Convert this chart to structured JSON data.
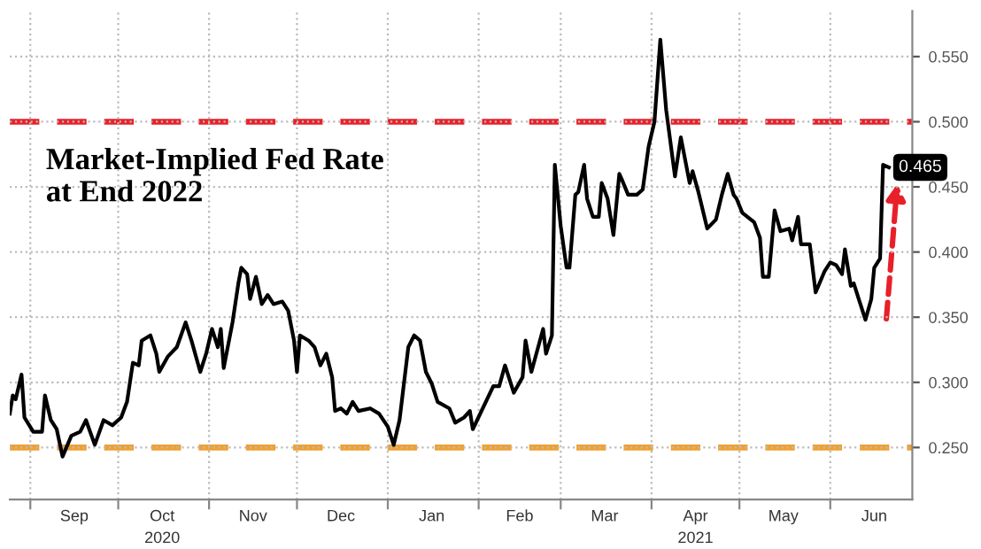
{
  "chart_data": {
    "type": "line",
    "title": "Market-Implied Fed Rate\nat End 2022",
    "x": [
      "2020-08-25",
      "2020-08-26",
      "2020-08-27",
      "2020-08-29",
      "2020-08-30",
      "2020-09-02",
      "2020-09-05",
      "2020-09-06",
      "2020-09-08",
      "2020-09-10",
      "2020-09-12",
      "2020-09-15",
      "2020-09-18",
      "2020-09-20",
      "2020-09-23",
      "2020-09-26",
      "2020-09-29",
      "2020-10-02",
      "2020-10-04",
      "2020-10-06",
      "2020-10-08",
      "2020-10-09",
      "2020-10-12",
      "2020-10-14",
      "2020-10-15",
      "2020-10-18",
      "2020-10-21",
      "2020-10-24",
      "2020-10-26",
      "2020-10-29",
      "2020-10-31",
      "2020-11-02",
      "2020-11-04",
      "2020-11-05",
      "2020-11-06",
      "2020-11-09",
      "2020-11-11",
      "2020-11-12",
      "2020-11-14",
      "2020-11-15",
      "2020-11-17",
      "2020-11-19",
      "2020-11-21",
      "2020-11-23",
      "2020-11-26",
      "2020-11-28",
      "2020-11-30",
      "2020-12-01",
      "2020-12-02",
      "2020-12-05",
      "2020-12-07",
      "2020-12-09",
      "2020-12-11",
      "2020-12-13",
      "2020-12-14",
      "2020-12-16",
      "2020-12-18",
      "2020-12-20",
      "2020-12-22",
      "2020-12-26",
      "2020-12-29",
      "2021-01-01",
      "2021-01-03",
      "2021-01-05",
      "2021-01-08",
      "2021-01-10",
      "2021-01-12",
      "2021-01-14",
      "2021-01-16",
      "2021-01-18",
      "2021-01-22",
      "2021-01-24",
      "2021-01-27",
      "2021-01-29",
      "2021-01-30",
      "2021-02-06",
      "2021-02-08",
      "2021-02-10",
      "2021-02-13",
      "2021-02-16",
      "2021-02-17",
      "2021-02-19",
      "2021-02-23",
      "2021-02-24",
      "2021-02-26",
      "2021-02-27",
      "2021-03-01",
      "2021-03-03",
      "2021-03-04",
      "2021-03-06",
      "2021-03-07",
      "2021-03-09",
      "2021-03-10",
      "2021-03-12",
      "2021-03-14",
      "2021-03-15",
      "2021-03-17",
      "2021-03-19",
      "2021-03-21",
      "2021-03-22",
      "2021-03-24",
      "2021-03-27",
      "2021-03-29",
      "2021-03-31",
      "2021-04-02",
      "2021-04-04",
      "2021-04-06",
      "2021-04-09",
      "2021-04-11",
      "2021-04-14",
      "2021-04-15",
      "2021-04-17",
      "2021-04-20",
      "2021-04-23",
      "2021-04-25",
      "2021-04-27",
      "2021-04-29",
      "2021-04-30",
      "2021-05-02",
      "2021-05-06",
      "2021-05-08",
      "2021-05-09",
      "2021-05-11",
      "2021-05-13",
      "2021-05-15",
      "2021-05-18",
      "2021-05-19",
      "2021-05-21",
      "2021-05-22",
      "2021-05-25",
      "2021-05-27",
      "2021-05-30",
      "2021-06-01",
      "2021-06-03",
      "2021-06-05",
      "2021-06-06",
      "2021-06-08",
      "2021-06-09",
      "2021-06-11",
      "2021-06-13",
      "2021-06-15",
      "2021-06-16",
      "2021-06-18",
      "2021-06-19",
      "2021-06-21"
    ],
    "series": [
      {
        "color": "#000000",
        "values": [
          0.276,
          0.29,
          0.287,
          0.306,
          0.273,
          0.262,
          0.262,
          0.29,
          0.271,
          0.264,
          0.243,
          0.259,
          0.262,
          0.271,
          0.252,
          0.271,
          0.267,
          0.273,
          0.285,
          0.315,
          0.313,
          0.332,
          0.336,
          0.322,
          0.308,
          0.32,
          0.327,
          0.346,
          0.332,
          0.308,
          0.322,
          0.341,
          0.327,
          0.341,
          0.311,
          0.346,
          0.376,
          0.388,
          0.383,
          0.364,
          0.381,
          0.36,
          0.367,
          0.36,
          0.362,
          0.355,
          0.332,
          0.308,
          0.336,
          0.332,
          0.327,
          0.313,
          0.322,
          0.304,
          0.278,
          0.28,
          0.276,
          0.285,
          0.278,
          0.28,
          0.276,
          0.266,
          0.252,
          0.271,
          0.327,
          0.336,
          0.332,
          0.308,
          0.299,
          0.285,
          0.28,
          0.269,
          0.273,
          0.278,
          0.264,
          0.297,
          0.297,
          0.313,
          0.292,
          0.304,
          0.332,
          0.308,
          0.341,
          0.322,
          0.336,
          0.467,
          0.42,
          0.388,
          0.388,
          0.444,
          0.446,
          0.467,
          0.441,
          0.427,
          0.427,
          0.453,
          0.441,
          0.413,
          0.46,
          0.455,
          0.444,
          0.444,
          0.448,
          0.481,
          0.5,
          0.563,
          0.509,
          0.458,
          0.488,
          0.453,
          0.462,
          0.446,
          0.418,
          0.425,
          0.444,
          0.46,
          0.444,
          0.441,
          0.43,
          0.423,
          0.411,
          0.381,
          0.381,
          0.432,
          0.416,
          0.418,
          0.409,
          0.427,
          0.406,
          0.406,
          0.369,
          0.385,
          0.392,
          0.39,
          0.383,
          0.402,
          0.374,
          0.376,
          0.362,
          0.348,
          0.364,
          0.388,
          0.395,
          0.467,
          0.465
        ],
        "value_labels": [
          null,
          null,
          null,
          null,
          null,
          null,
          null,
          null,
          null,
          null,
          null,
          null,
          null,
          null,
          null,
          null,
          null,
          null,
          null,
          null,
          null,
          null,
          null,
          null,
          null,
          null,
          null,
          null,
          null,
          null,
          null,
          null,
          null,
          null,
          null,
          null,
          null,
          null,
          null,
          null,
          null,
          null,
          null,
          null,
          null,
          null,
          null,
          null,
          null,
          null,
          null,
          null,
          null,
          null,
          null,
          null,
          null,
          null,
          null,
          null,
          null,
          null,
          null,
          null,
          null,
          null,
          null,
          null,
          null,
          null,
          null,
          null,
          null,
          null,
          null,
          null,
          null,
          null,
          null,
          null,
          null,
          null,
          null,
          null,
          null,
          null,
          null,
          null,
          null,
          null,
          null,
          null,
          null,
          null,
          null,
          null,
          null,
          null,
          null,
          null,
          null,
          null,
          null,
          null,
          null,
          null,
          null,
          null,
          null,
          null,
          null,
          null,
          null,
          null,
          null,
          null,
          null,
          null,
          null,
          null,
          null,
          null,
          null,
          null,
          null,
          null,
          null,
          null,
          null,
          null,
          null,
          null,
          null,
          null,
          null,
          null,
          null,
          null,
          null,
          null,
          null,
          null,
          null,
          null,
          "0.465"
        ]
      }
    ],
    "xlim": [
      "2020-08-25",
      "2021-06-29"
    ],
    "xticks": [
      {
        "value": "2020-09-01",
        "label": null
      },
      {
        "value": "2020-10-01",
        "label": null
      },
      {
        "value": "2020-11-01",
        "label": null
      },
      {
        "value": "2020-12-01",
        "label": null
      },
      {
        "value": "2021-01-01",
        "label": null
      },
      {
        "value": "2021-02-01",
        "label": null
      },
      {
        "value": "2021-03-01",
        "label": null
      },
      {
        "value": "2021-04-01",
        "label": null
      },
      {
        "value": "2021-05-01",
        "label": null
      },
      {
        "value": "2021-06-01",
        "label": null
      },
      {
        "value": "2020-09-16",
        "label": "Sep"
      },
      {
        "value": "2020-10-16",
        "label": "Oct\n2020"
      },
      {
        "value": "2020-11-16",
        "label": "Nov"
      },
      {
        "value": "2020-12-16",
        "label": "Dec"
      },
      {
        "value": "2021-01-16",
        "label": "Jan"
      },
      {
        "value": "2021-02-15",
        "label": "Feb"
      },
      {
        "value": "2021-03-16",
        "label": "Mar"
      },
      {
        "value": "2021-04-16",
        "label": "Apr\n2021"
      },
      {
        "value": "2021-05-16",
        "label": "May"
      },
      {
        "value": "2021-06-16",
        "label": "Jun"
      }
    ],
    "ylim": [
      0.21,
      0.585
    ],
    "yticks": [
      {
        "value": 0.25,
        "label": "0.250"
      },
      {
        "value": 0.3,
        "label": "0.300"
      },
      {
        "value": 0.35,
        "label": "0.350"
      },
      {
        "value": 0.4,
        "label": "0.400"
      },
      {
        "value": 0.45,
        "label": "0.450"
      },
      {
        "value": 0.5,
        "label": "0.500"
      },
      {
        "value": 0.55,
        "label": "0.550"
      }
    ],
    "ref_lines": [
      {
        "axis": "y",
        "value": 0.5,
        "color": "#e8202a",
        "line_style": "dashed"
      },
      {
        "axis": "y",
        "value": 0.25,
        "color": "#f0a030",
        "line_style": "dashed"
      }
    ],
    "grid": true,
    "marker": "none",
    "line_style": "solid"
  }
}
